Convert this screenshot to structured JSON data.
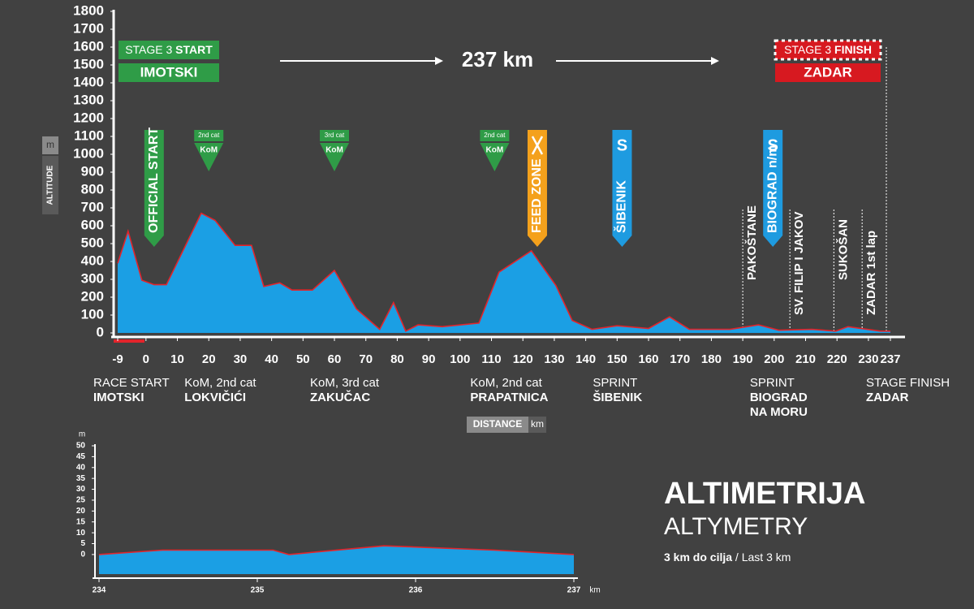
{
  "chart_data": [
    {
      "type": "area",
      "title": "237 km",
      "banners": {
        "start_stage": "STAGE 3",
        "start_word": "START",
        "start_town": "IMOTSKI",
        "finish_stage": "STAGE 3",
        "finish_word": "FINISH",
        "finish_town": "ZADAR"
      },
      "y_label": "ALTITUDE",
      "y_unit": "m",
      "x_label": "DISTANCE",
      "x_unit": "km",
      "x": [
        -9,
        -5.7,
        -1.3,
        2.6,
        6.5,
        9,
        17.6,
        22,
        28.4,
        33.6,
        37.5,
        42.6,
        46.5,
        53,
        60,
        67,
        74.4,
        78.8,
        82.7,
        86.6,
        94.3,
        106,
        112.4,
        122.7,
        130.5,
        135.7,
        142,
        150,
        160,
        166.7,
        173,
        186,
        195,
        201.5,
        212,
        219.6,
        223.5,
        233.8,
        237
      ],
      "values": [
        390,
        570,
        295,
        270,
        270,
        360,
        670,
        630,
        490,
        490,
        260,
        280,
        240,
        240,
        350,
        135,
        20,
        170,
        10,
        45,
        35,
        55,
        340,
        460,
        265,
        70,
        20,
        40,
        25,
        90,
        20,
        20,
        45,
        15,
        20,
        10,
        35,
        10,
        10
      ],
      "color": "#1b9fe4",
      "line_color": "#e2242b",
      "xlim": [
        -9,
        237
      ],
      "xticks": [
        -9,
        0,
        10,
        20,
        30,
        40,
        50,
        60,
        70,
        80,
        90,
        100,
        110,
        120,
        130,
        140,
        150,
        160,
        170,
        180,
        190,
        200,
        210,
        220,
        230,
        237
      ],
      "ylim": [
        0,
        1800
      ],
      "yticks": [
        0,
        100,
        200,
        300,
        400,
        500,
        600,
        700,
        800,
        900,
        1000,
        1100,
        1200,
        1300,
        1400,
        1500,
        1600,
        1700,
        1800
      ],
      "markers": [
        {
          "kind": "flag",
          "x": 0,
          "color": "#2f9c47",
          "label": "OFFICIAL START"
        },
        {
          "kind": "kom",
          "x": 20,
          "color": "#2f9c47",
          "category": "2nd cat",
          "label": "KoM"
        },
        {
          "kind": "kom",
          "x": 60,
          "color": "#2f9c47",
          "category": "3rd cat",
          "label": "KoM"
        },
        {
          "kind": "kom",
          "x": 111,
          "color": "#2f9c47",
          "category": "2nd cat",
          "label": "KoM"
        },
        {
          "kind": "flag",
          "x": 122,
          "color": "#f4a11c",
          "label": "FEED ZONE",
          "icon": true
        },
        {
          "kind": "flag",
          "x": 149,
          "color": "#1e9be0",
          "label": "ŠIBENIK",
          "symbol": "S"
        },
        {
          "kind": "flag",
          "x": 197,
          "color": "#1e9be0",
          "label": "BIOGRAD n/m",
          "symbol": "S"
        }
      ],
      "places": [
        {
          "x": 190,
          "label": "PAKOŠTANE"
        },
        {
          "x": 205,
          "label": "SV. FILIP I JAKOV"
        },
        {
          "x": 219,
          "label": "SUKOŠAN"
        },
        {
          "x": 228,
          "label": "ZADAR 1st lap"
        }
      ],
      "stops": [
        {
          "x": -9,
          "lines": [
            "RACE START",
            "IMOTSKI"
          ]
        },
        {
          "x": 20,
          "lines": [
            "KoM, 2nd cat",
            "LOKVIČIĆI"
          ]
        },
        {
          "x": 60,
          "lines": [
            "KoM, 3rd cat",
            "ZAKUČAC"
          ]
        },
        {
          "x": 111,
          "lines": [
            "KoM, 2nd cat",
            "PRAPATNICA"
          ]
        },
        {
          "x": 150,
          "lines": [
            "SPRINT",
            "ŠIBENIK"
          ]
        },
        {
          "x": 200,
          "lines": [
            "SPRINT",
            "BIOGRAD",
            "NA MORU"
          ]
        },
        {
          "x": 237,
          "lines": [
            "STAGE FINISH",
            "ZADAR"
          ]
        }
      ]
    },
    {
      "type": "area",
      "title": "ALTIMETRIJA",
      "subtitle": "ALTYMETRY",
      "note_bold": "3 km do cilja",
      "note": " / Last 3 km",
      "y_unit": "m",
      "x_unit": "km",
      "x": [
        234,
        234.4,
        235.1,
        235.2,
        235.8,
        236.5,
        237
      ],
      "values": [
        0,
        2,
        2,
        0,
        4,
        2,
        0
      ],
      "color": "#1b9fe4",
      "line_color": "#e2242b",
      "xlim": [
        234,
        237
      ],
      "xticks": [
        234,
        235,
        236,
        237
      ],
      "ylim": [
        -9,
        50
      ],
      "yticks": [
        0,
        5,
        10,
        15,
        20,
        25,
        30,
        35,
        40,
        45,
        50
      ]
    }
  ]
}
